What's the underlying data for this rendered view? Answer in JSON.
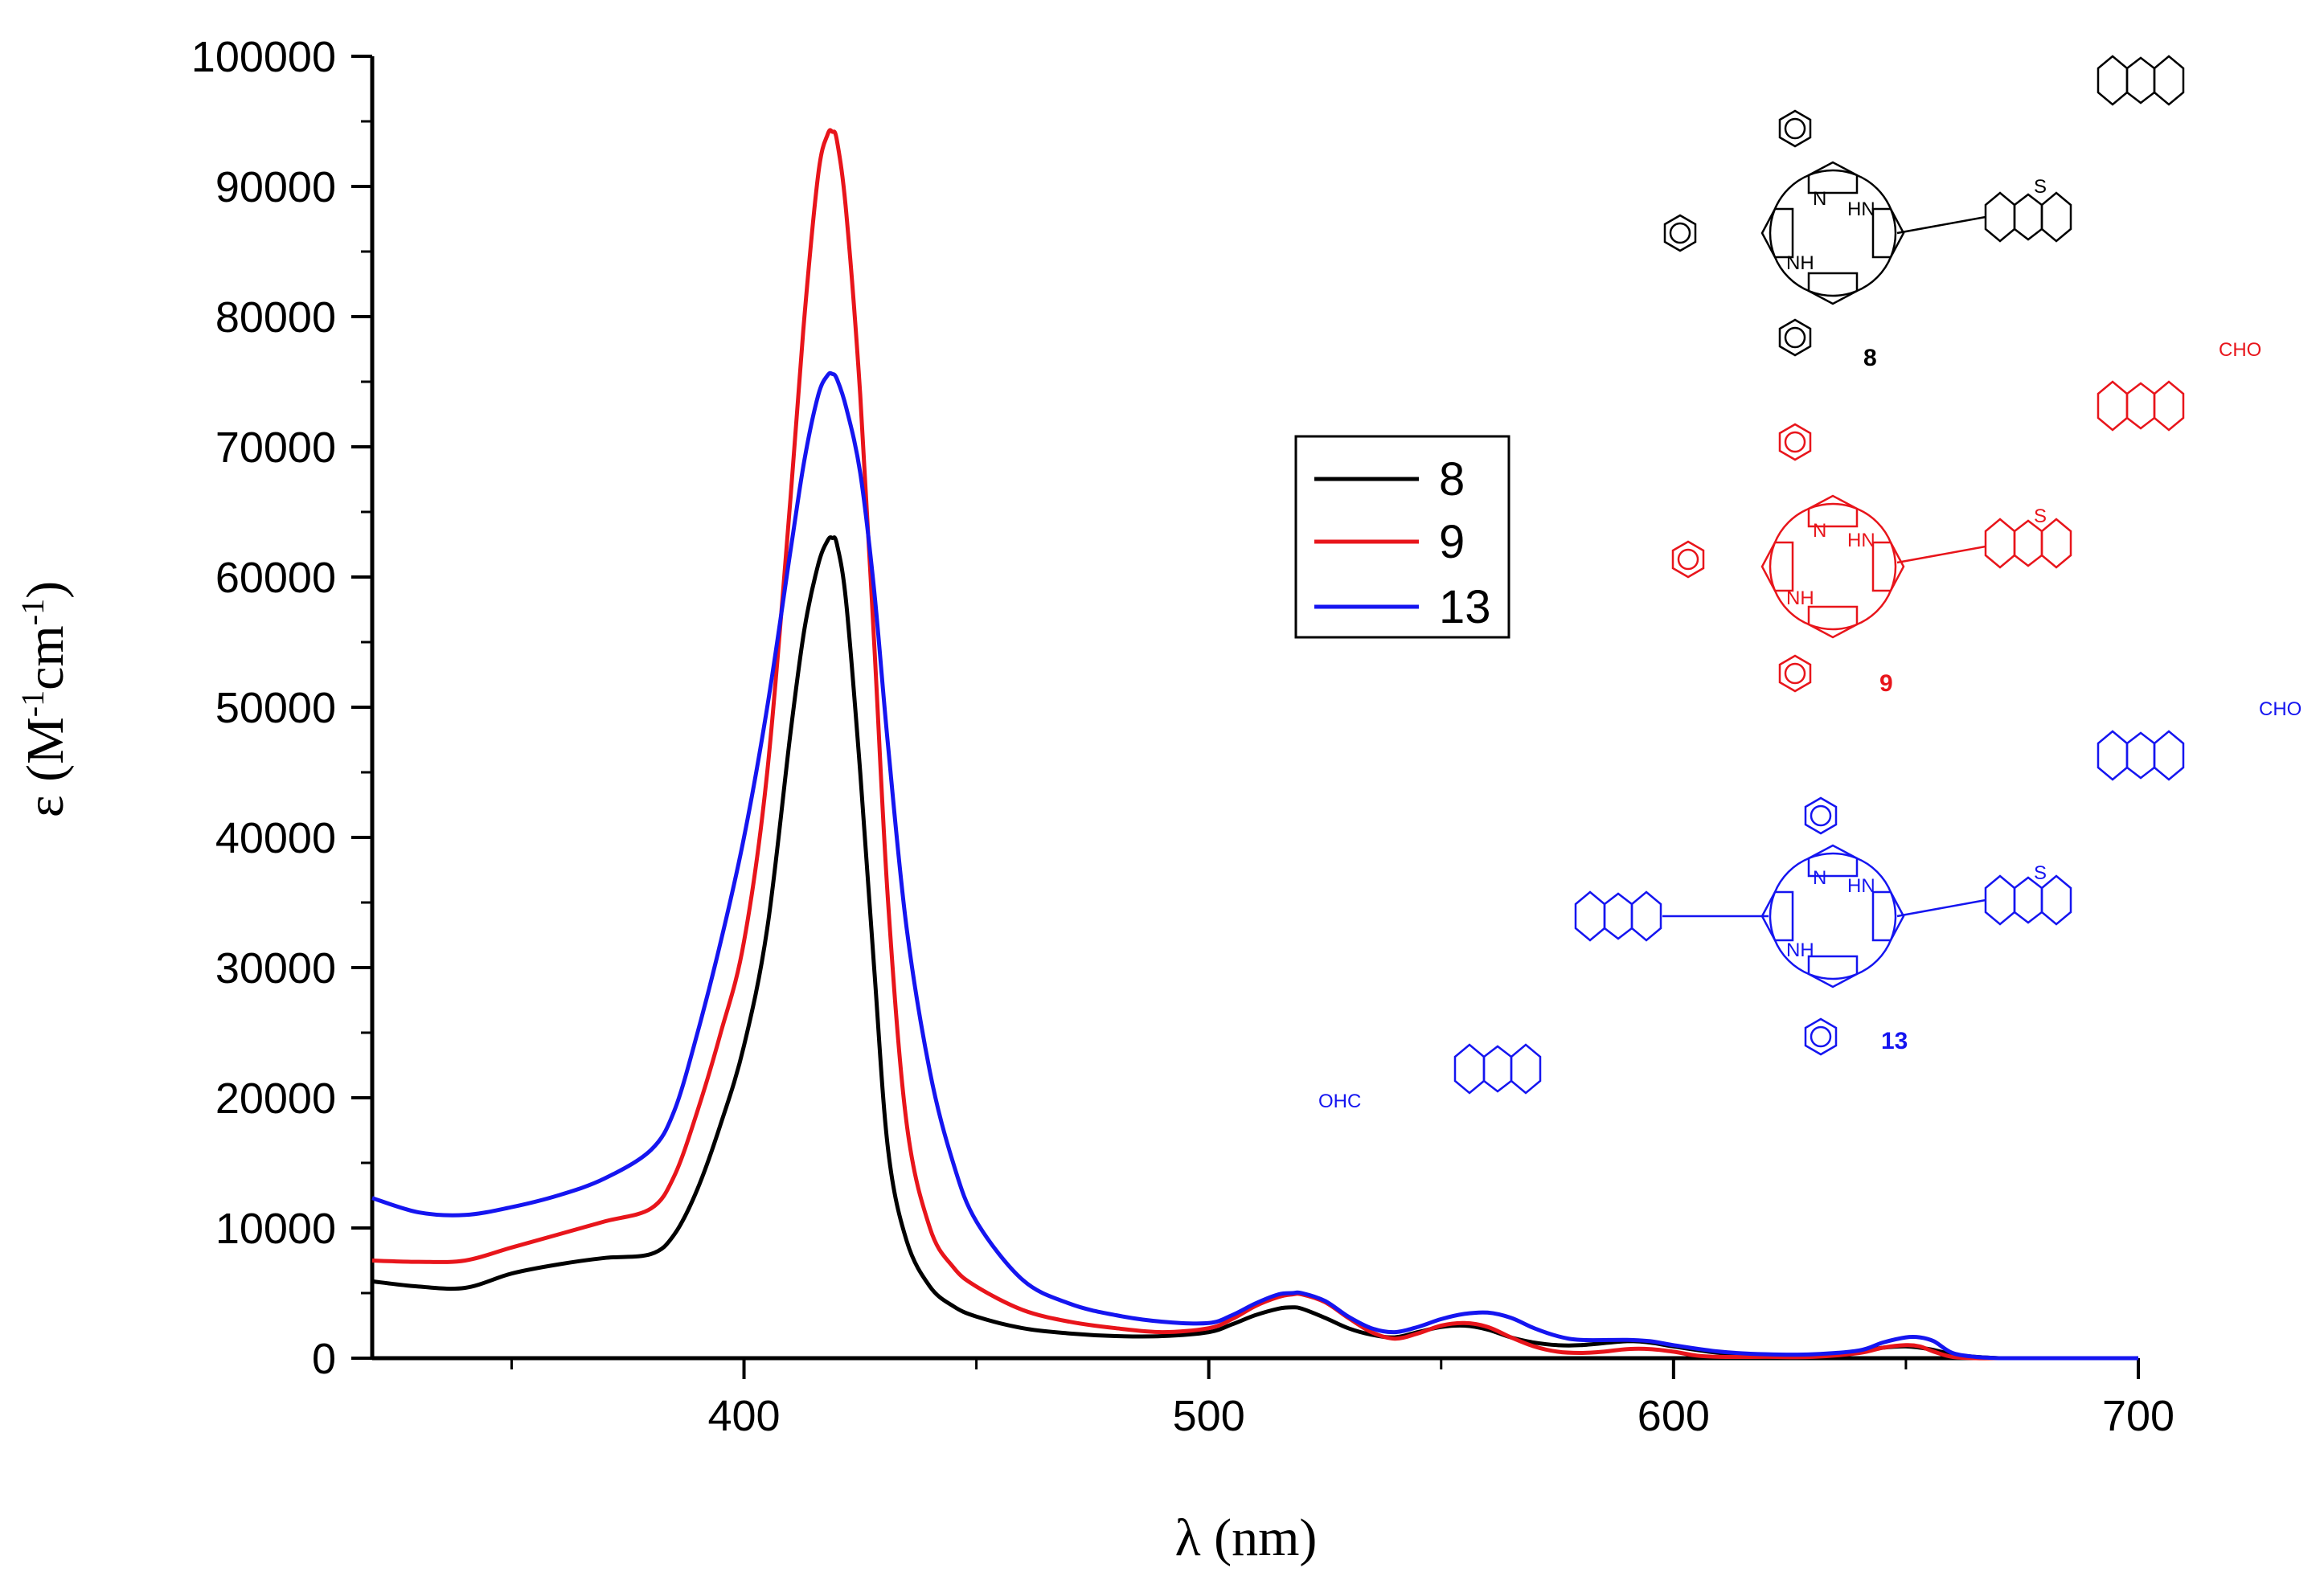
{
  "chart_data": {
    "type": "line",
    "title": "",
    "xlabel": "λ (nm)",
    "ylabel_main": "ε (M",
    "ylabel_sup1": "-1",
    "ylabel_mid": "cm",
    "ylabel_sup2": "-1",
    "ylabel_end": ")",
    "xlim": [
      320,
      700
    ],
    "ylim": [
      0,
      100000
    ],
    "xticks": [
      400,
      500,
      600,
      700
    ],
    "xtick_labels": [
      "400",
      "500",
      "600",
      "700"
    ],
    "yticks": [
      0,
      10000,
      20000,
      30000,
      40000,
      50000,
      60000,
      70000,
      80000,
      90000,
      100000
    ],
    "ytick_labels": [
      "0",
      "10000",
      "20000",
      "30000",
      "40000",
      "50000",
      "60000",
      "70000",
      "80000",
      "90000",
      "100000"
    ],
    "legend": [
      "8",
      "9",
      "13"
    ],
    "series": [
      {
        "name": "8",
        "color": "#000000",
        "x": [
          320,
          330,
          340,
          350,
          360,
          370,
          380,
          385,
          390,
          395,
          400,
          405,
          410,
          413,
          416,
          418,
          419,
          420,
          422,
          425,
          428,
          431,
          435,
          440,
          445,
          450,
          460,
          470,
          480,
          490,
          500,
          505,
          510,
          515,
          518,
          520,
          525,
          530,
          535,
          540,
          545,
          550,
          555,
          560,
          565,
          570,
          575,
          580,
          590,
          595,
          600,
          610,
          620,
          630,
          640,
          645,
          650,
          655,
          660,
          665,
          670
        ],
        "y": [
          5900,
          5500,
          5400,
          6500,
          7200,
          7700,
          8000,
          9500,
          13000,
          18000,
          24000,
          33000,
          48000,
          56000,
          61000,
          62800,
          63000,
          62500,
          58000,
          45000,
          30000,
          16000,
          9000,
          5500,
          4000,
          3200,
          2300,
          1900,
          1700,
          1700,
          2000,
          2600,
          3300,
          3800,
          3900,
          3800,
          3100,
          2300,
          1800,
          1600,
          2000,
          2400,
          2500,
          2200,
          1600,
          1200,
          1000,
          1000,
          1300,
          1200,
          900,
          400,
          200,
          200,
          500,
          800,
          900,
          700,
          300,
          100,
          0
        ]
      },
      {
        "name": "9",
        "color": "#e8151b",
        "x": [
          320,
          330,
          340,
          350,
          360,
          370,
          380,
          385,
          390,
          395,
          400,
          405,
          410,
          413,
          416,
          418,
          419,
          420,
          422,
          425,
          428,
          431,
          435,
          440,
          445,
          450,
          460,
          470,
          480,
          490,
          500,
          505,
          510,
          515,
          518,
          520,
          525,
          530,
          535,
          540,
          545,
          550,
          555,
          560,
          565,
          570,
          575,
          580,
          585,
          590,
          595,
          600,
          605,
          610,
          620,
          630,
          640,
          645,
          650,
          653,
          656,
          660,
          665,
          670
        ],
        "y": [
          7500,
          7400,
          7500,
          8500,
          9500,
          10500,
          11500,
          14000,
          19000,
          25000,
          32000,
          45000,
          66000,
          80000,
          91000,
          94000,
          94200,
          93500,
          88000,
          74000,
          55000,
          35000,
          18000,
          10000,
          7000,
          5500,
          3700,
          2800,
          2300,
          2000,
          2300,
          3000,
          4000,
          4700,
          4900,
          4900,
          4300,
          3100,
          2000,
          1500,
          1900,
          2500,
          2700,
          2400,
          1600,
          900,
          500,
          400,
          500,
          700,
          700,
          500,
          200,
          100,
          100,
          100,
          400,
          800,
          1000,
          900,
          500,
          100,
          0,
          0
        ]
      },
      {
        "name": "13",
        "color": "#1515f0",
        "x": [
          320,
          330,
          340,
          350,
          360,
          370,
          380,
          385,
          390,
          395,
          400,
          405,
          410,
          413,
          416,
          418,
          419,
          420,
          422,
          425,
          428,
          431,
          435,
          440,
          445,
          450,
          460,
          470,
          480,
          490,
          500,
          505,
          510,
          515,
          518,
          520,
          525,
          530,
          535,
          540,
          545,
          550,
          555,
          560,
          565,
          570,
          575,
          580,
          590,
          595,
          600,
          610,
          620,
          630,
          640,
          645,
          650,
          653,
          656,
          660,
          665,
          670
        ],
        "y": [
          12300,
          11200,
          11000,
          11600,
          12500,
          13800,
          16000,
          19000,
          25000,
          32000,
          40000,
          50000,
          62000,
          69000,
          74000,
          75500,
          75600,
          75200,
          73000,
          68000,
          59000,
          47000,
          33000,
          22000,
          15000,
          10500,
          6000,
          4200,
          3300,
          2800,
          2700,
          3300,
          4200,
          4900,
          5000,
          5000,
          4400,
          3200,
          2300,
          2000,
          2400,
          3000,
          3400,
          3500,
          3100,
          2300,
          1700,
          1400,
          1400,
          1300,
          1000,
          500,
          300,
          300,
          600,
          1200,
          1600,
          1600,
          1300,
          400,
          100,
          0
        ]
      }
    ],
    "molecules": [
      {
        "label": "8",
        "color": "#000000",
        "substituent": ""
      },
      {
        "label": "9",
        "color": "#e8151b",
        "substituent": "CHO"
      },
      {
        "label": "13",
        "color": "#1515f0",
        "substituent": "CHO",
        "substituent_left": "OHC"
      }
    ],
    "atoms": {
      "N": "N",
      "S": "S",
      "NH": "NH",
      "HN": "HN"
    }
  }
}
